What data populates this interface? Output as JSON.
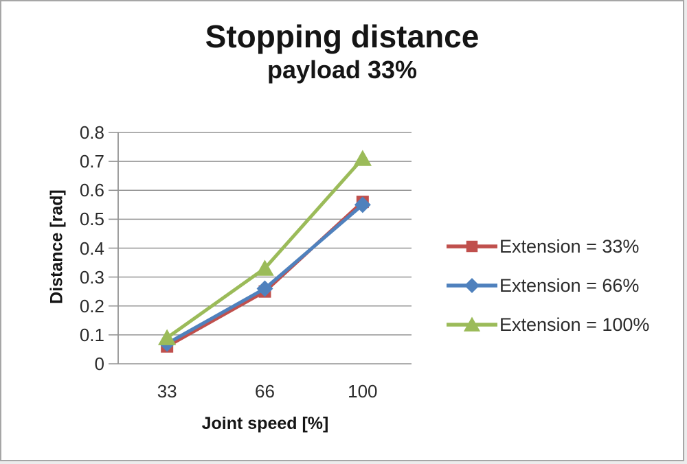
{
  "chart_data": {
    "type": "line",
    "title": "Stopping distance",
    "subtitle": "payload 33%",
    "xlabel": "Joint speed [%]",
    "ylabel": "Distance [rad]",
    "categories": [
      "33",
      "66",
      "100"
    ],
    "y_ticks": [
      "0",
      "0.1",
      "0.2",
      "0.3",
      "0.4",
      "0.5",
      "0.6",
      "0.7",
      "0.8"
    ],
    "ylim": [
      0,
      0.8
    ],
    "grid": "horizontal",
    "legend_position": "right",
    "series": [
      {
        "name": "Extension = 33%",
        "marker": "square",
        "color": "#C0504D",
        "values": [
          0.06,
          0.25,
          0.56
        ]
      },
      {
        "name": "Extension = 66%",
        "marker": "diamond",
        "color": "#4F81BD",
        "values": [
          0.07,
          0.26,
          0.55
        ]
      },
      {
        "name": "Extension = 100%",
        "marker": "triangle",
        "color": "#9BBB59",
        "values": [
          0.09,
          0.33,
          0.71
        ]
      }
    ],
    "style": {
      "grid_color": "#949494",
      "axis_color": "#949494",
      "text_color": "#2b2b2b",
      "title_color": "#151515",
      "background": "#ffffff",
      "frame_border": "#a6a6a6"
    }
  }
}
